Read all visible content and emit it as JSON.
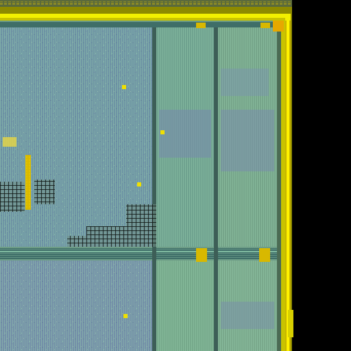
{
  "image": {
    "subject": "die-photo",
    "colors": {
      "background": "#000000",
      "die_base": "#6d9c86",
      "die_blue": "#7789ad",
      "die_green": "#86c79a",
      "seal_ring": "#f2f000",
      "seal_ring_dark": "#8d8a00",
      "bus_channel": "#3f6e68",
      "pad": "#d8b800",
      "cell_dark": "#1a1f1c",
      "top_strip": "#5b6a3b"
    }
  }
}
